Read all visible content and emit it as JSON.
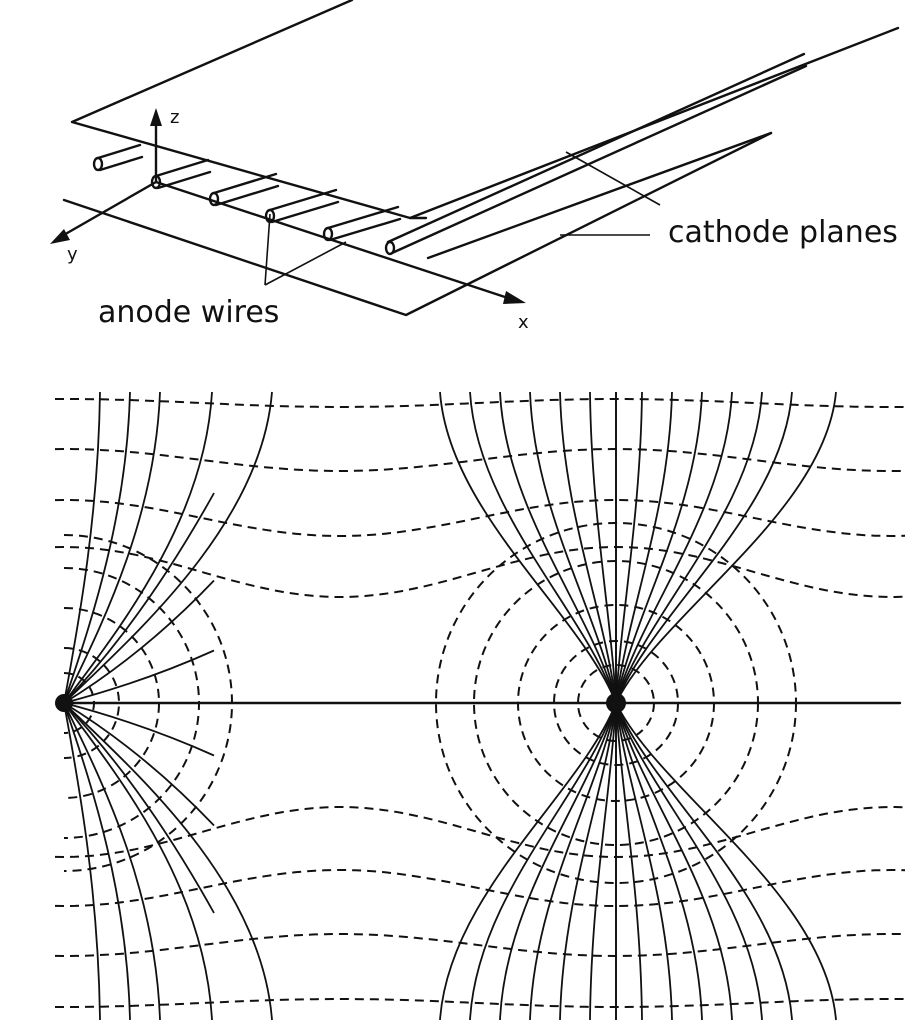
{
  "labels": {
    "z_axis": "z",
    "y_axis": "y",
    "x_axis": "x",
    "cathode_planes": "cathode planes",
    "anode_wires": "anode wires"
  },
  "colors": {
    "ink": "#111111",
    "background": "#ffffff"
  },
  "field_map": {
    "line_styles": {
      "field_lines": "solid",
      "equipotential_lines": "dashed"
    }
  }
}
